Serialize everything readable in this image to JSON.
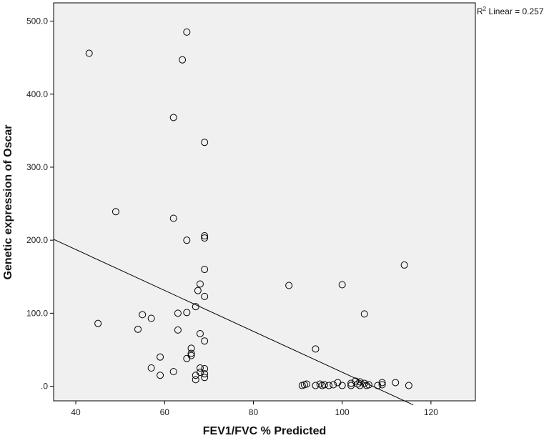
{
  "chart_data": {
    "type": "scatter",
    "title": "",
    "xlabel": "FEV1/FVC % Predicted",
    "ylabel": "Genetic expression of Oscar",
    "xlim": [
      35,
      130
    ],
    "ylim": [
      -20,
      525
    ],
    "x_ticks": [
      40,
      60,
      80,
      100,
      120
    ],
    "x_tick_labels": [
      "40",
      "60",
      "80",
      "100",
      "120"
    ],
    "y_ticks": [
      0,
      100,
      200,
      300,
      400,
      500
    ],
    "y_tick_labels": [
      ".0",
      "100.0",
      "200.0",
      "300.0",
      "400.0",
      "500.0"
    ],
    "grid": false,
    "plot_background": "#f0f0f0",
    "marker_color": "#000000",
    "fit_line": {
      "label_prefix": "R",
      "label_sup": "2",
      "label_rest": " Linear = 0.257",
      "x": [
        35,
        116
      ],
      "y": [
        201.2,
        -25.6
      ]
    },
    "points": [
      {
        "x": 43,
        "y": 456
      },
      {
        "x": 65,
        "y": 485
      },
      {
        "x": 64,
        "y": 447
      },
      {
        "x": 62,
        "y": 368
      },
      {
        "x": 69,
        "y": 334
      },
      {
        "x": 49,
        "y": 239
      },
      {
        "x": 62,
        "y": 230
      },
      {
        "x": 65,
        "y": 200
      },
      {
        "x": 69,
        "y": 206
      },
      {
        "x": 69,
        "y": 203
      },
      {
        "x": 69,
        "y": 160
      },
      {
        "x": 68,
        "y": 140
      },
      {
        "x": 67.5,
        "y": 131
      },
      {
        "x": 69,
        "y": 123
      },
      {
        "x": 67,
        "y": 109
      },
      {
        "x": 63,
        "y": 100
      },
      {
        "x": 65,
        "y": 101
      },
      {
        "x": 55,
        "y": 98
      },
      {
        "x": 57,
        "y": 93
      },
      {
        "x": 45,
        "y": 86
      },
      {
        "x": 54,
        "y": 78
      },
      {
        "x": 63,
        "y": 77
      },
      {
        "x": 68,
        "y": 72
      },
      {
        "x": 69,
        "y": 62
      },
      {
        "x": 66,
        "y": 52
      },
      {
        "x": 66,
        "y": 45
      },
      {
        "x": 66,
        "y": 42
      },
      {
        "x": 65,
        "y": 38
      },
      {
        "x": 59,
        "y": 40
      },
      {
        "x": 57,
        "y": 25
      },
      {
        "x": 62,
        "y": 20
      },
      {
        "x": 59,
        "y": 15
      },
      {
        "x": 68,
        "y": 25
      },
      {
        "x": 69,
        "y": 24
      },
      {
        "x": 68,
        "y": 19
      },
      {
        "x": 69,
        "y": 17
      },
      {
        "x": 67,
        "y": 15
      },
      {
        "x": 69,
        "y": 12
      },
      {
        "x": 67,
        "y": 9
      },
      {
        "x": 88,
        "y": 138
      },
      {
        "x": 100,
        "y": 139
      },
      {
        "x": 114,
        "y": 166
      },
      {
        "x": 105,
        "y": 99
      },
      {
        "x": 94,
        "y": 51
      },
      {
        "x": 91,
        "y": 1
      },
      {
        "x": 91.5,
        "y": 2
      },
      {
        "x": 92,
        "y": 3
      },
      {
        "x": 94,
        "y": 1
      },
      {
        "x": 95,
        "y": 3
      },
      {
        "x": 95.5,
        "y": 1
      },
      {
        "x": 96,
        "y": 2
      },
      {
        "x": 97,
        "y": 1
      },
      {
        "x": 98,
        "y": 2
      },
      {
        "x": 99,
        "y": 5
      },
      {
        "x": 100,
        "y": 1
      },
      {
        "x": 102,
        "y": 4
      },
      {
        "x": 102,
        "y": 1
      },
      {
        "x": 103,
        "y": 7
      },
      {
        "x": 103.5,
        "y": 3
      },
      {
        "x": 104,
        "y": 1
      },
      {
        "x": 104,
        "y": 6
      },
      {
        "x": 105,
        "y": 4
      },
      {
        "x": 105.5,
        "y": 1
      },
      {
        "x": 106,
        "y": 2
      },
      {
        "x": 108,
        "y": 1
      },
      {
        "x": 109,
        "y": 5
      },
      {
        "x": 109,
        "y": 2
      },
      {
        "x": 112,
        "y": 5
      },
      {
        "x": 115,
        "y": 1
      }
    ]
  }
}
